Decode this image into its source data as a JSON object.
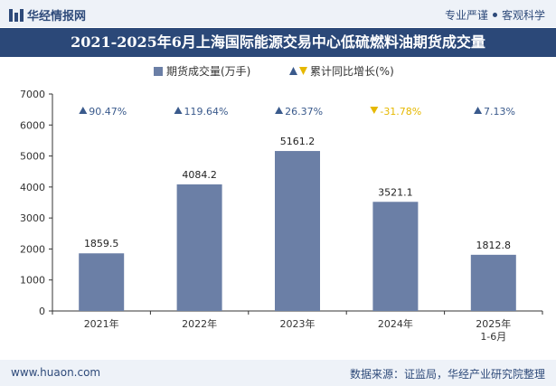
{
  "header": {
    "brand": "华经情报网",
    "tagline_left": "专业严谨",
    "tagline_right": "客观科学"
  },
  "footer": {
    "website": "www.huaon.com",
    "source": "数据来源：证监局，华经产业研究院整理"
  },
  "colors": {
    "bar": "#6b7fa6",
    "growth_up": "#3a5a8c",
    "growth_down": "#e6b800",
    "title_bg": "#2b4878"
  },
  "chart_data": {
    "type": "bar",
    "title": "2021-2025年6月上海国际能源交易中心低硫燃料油期货成交量",
    "categories": [
      "2021年",
      "2022年",
      "2023年",
      "2024年",
      "2025年\n1-6月"
    ],
    "series": [
      {
        "name": "期货成交量(万手)",
        "values": [
          1859.5,
          4084.2,
          5161.2,
          3521.1,
          1812.8
        ]
      },
      {
        "name": "累计同比增长(%)",
        "values": [
          90.47,
          119.64,
          26.37,
          -31.78,
          7.13
        ]
      }
    ],
    "value_labels": [
      "1859.5",
      "4084.2",
      "5161.2",
      "3521.1",
      "1812.8"
    ],
    "growth_labels": [
      "90.47%",
      "119.64%",
      "26.37%",
      "-31.78%",
      "7.13%"
    ],
    "yticks": [
      "0",
      "1000",
      "2000",
      "3000",
      "4000",
      "5000",
      "6000",
      "7000"
    ],
    "ylim": [
      0,
      7000
    ],
    "legend_position": "top",
    "grid": false
  }
}
